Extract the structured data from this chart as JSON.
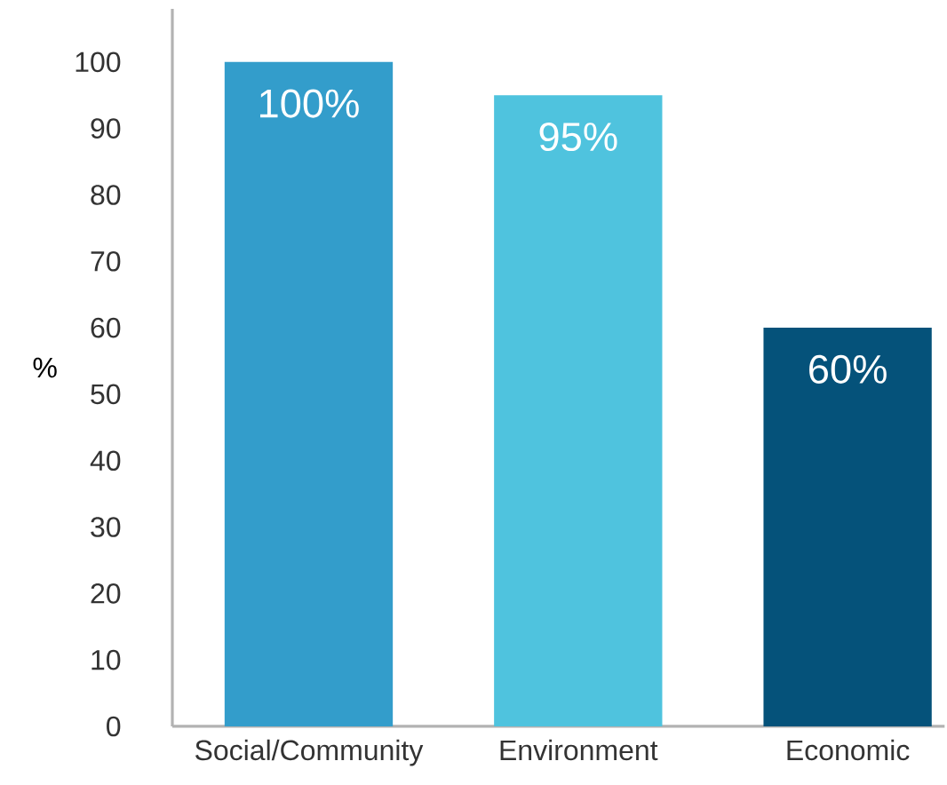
{
  "chart_data": {
    "type": "bar",
    "ylabel": "%",
    "categories": [
      "Social/Community",
      "Environment",
      "Economic"
    ],
    "values": [
      100,
      95,
      60
    ],
    "colors": [
      "#339dcb",
      "#4fc3de",
      "#05527a"
    ],
    "value_labels": [
      "100%",
      "95%",
      "60%"
    ],
    "ylim": [
      0,
      108
    ],
    "yticks": [
      0,
      10,
      20,
      30,
      40,
      50,
      60,
      70,
      80,
      90,
      100
    ]
  }
}
